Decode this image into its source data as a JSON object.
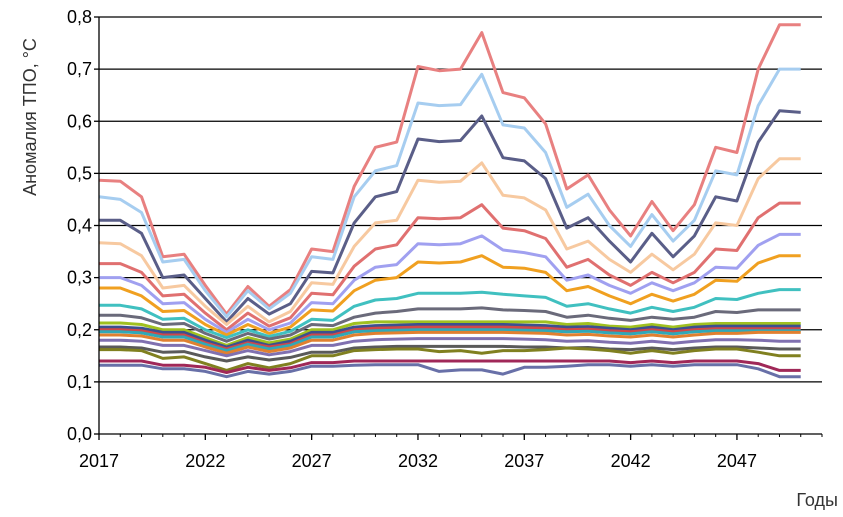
{
  "chart_data": {
    "type": "line",
    "ylabel": "Аномалия ТПО, °С",
    "xlabel": "Годы",
    "ylim": [
      0,
      0.8
    ],
    "xlim": [
      2017,
      2051
    ],
    "grid": "horizontal",
    "x_ticks": [
      "2017",
      "2022",
      "2027",
      "2032",
      "2037",
      "2042",
      "2047"
    ],
    "y_ticks": [
      "0,0",
      "0,1",
      "0,2",
      "0,3",
      "0,4",
      "0,5",
      "0,6",
      "0,7",
      "0,8"
    ],
    "x": [
      2017,
      2018,
      2019,
      2020,
      2021,
      2022,
      2023,
      2024,
      2025,
      2026,
      2027,
      2028,
      2029,
      2030,
      2031,
      2032,
      2033,
      2034,
      2035,
      2036,
      2037,
      2038,
      2039,
      2040,
      2041,
      2042,
      2043,
      2044,
      2045,
      2046,
      2047,
      2048,
      2049,
      2050
    ],
    "series": [
      {
        "color": "#e88080",
        "values": [
          0.487,
          0.485,
          0.455,
          0.34,
          0.345,
          0.285,
          0.23,
          0.283,
          0.245,
          0.277,
          0.355,
          0.35,
          0.475,
          0.55,
          0.56,
          0.705,
          0.697,
          0.7,
          0.77,
          0.655,
          0.645,
          0.595,
          0.47,
          0.497,
          0.43,
          0.38,
          0.446,
          0.39,
          0.44,
          0.55,
          0.54,
          0.7,
          0.785,
          0.785
        ]
      },
      {
        "color": "#a6cdf0",
        "values": [
          0.455,
          0.45,
          0.425,
          0.33,
          0.335,
          0.275,
          0.225,
          0.275,
          0.24,
          0.27,
          0.34,
          0.335,
          0.455,
          0.505,
          0.515,
          0.635,
          0.63,
          0.632,
          0.69,
          0.593,
          0.587,
          0.54,
          0.435,
          0.46,
          0.4,
          0.36,
          0.421,
          0.37,
          0.41,
          0.505,
          0.497,
          0.63,
          0.7,
          0.7
        ]
      },
      {
        "color": "#5a5e88",
        "values": [
          0.41,
          0.41,
          0.385,
          0.3,
          0.305,
          0.26,
          0.215,
          0.26,
          0.23,
          0.25,
          0.312,
          0.309,
          0.405,
          0.455,
          0.465,
          0.566,
          0.561,
          0.563,
          0.61,
          0.53,
          0.524,
          0.49,
          0.395,
          0.415,
          0.37,
          0.33,
          0.385,
          0.34,
          0.38,
          0.455,
          0.447,
          0.56,
          0.62,
          0.617
        ]
      },
      {
        "color": "#f7c9a0",
        "values": [
          0.367,
          0.365,
          0.342,
          0.28,
          0.285,
          0.245,
          0.21,
          0.245,
          0.215,
          0.235,
          0.29,
          0.287,
          0.36,
          0.405,
          0.41,
          0.487,
          0.483,
          0.485,
          0.52,
          0.458,
          0.453,
          0.43,
          0.355,
          0.37,
          0.335,
          0.31,
          0.345,
          0.315,
          0.345,
          0.405,
          0.4,
          0.49,
          0.528,
          0.528
        ]
      },
      {
        "color": "#e07070",
        "values": [
          0.327,
          0.327,
          0.31,
          0.265,
          0.268,
          0.232,
          0.2,
          0.232,
          0.207,
          0.223,
          0.27,
          0.267,
          0.322,
          0.355,
          0.363,
          0.415,
          0.413,
          0.415,
          0.44,
          0.395,
          0.39,
          0.375,
          0.32,
          0.335,
          0.305,
          0.285,
          0.31,
          0.29,
          0.31,
          0.355,
          0.352,
          0.415,
          0.443,
          0.443
        ]
      },
      {
        "color": "#a0a0f0",
        "values": [
          0.3,
          0.3,
          0.285,
          0.25,
          0.252,
          0.22,
          0.195,
          0.22,
          0.2,
          0.213,
          0.252,
          0.25,
          0.295,
          0.32,
          0.325,
          0.365,
          0.363,
          0.365,
          0.38,
          0.353,
          0.348,
          0.34,
          0.295,
          0.305,
          0.285,
          0.27,
          0.29,
          0.275,
          0.29,
          0.32,
          0.318,
          0.362,
          0.383,
          0.383
        ]
      },
      {
        "color": "#f0a020",
        "values": [
          0.28,
          0.28,
          0.265,
          0.235,
          0.237,
          0.21,
          0.19,
          0.21,
          0.193,
          0.205,
          0.238,
          0.236,
          0.275,
          0.295,
          0.3,
          0.33,
          0.328,
          0.33,
          0.342,
          0.32,
          0.318,
          0.31,
          0.275,
          0.283,
          0.265,
          0.25,
          0.268,
          0.255,
          0.268,
          0.295,
          0.293,
          0.328,
          0.342,
          0.342
        ]
      },
      {
        "color": "#40c0c0",
        "values": [
          0.247,
          0.247,
          0.24,
          0.22,
          0.222,
          0.2,
          0.185,
          0.2,
          0.187,
          0.197,
          0.22,
          0.218,
          0.245,
          0.257,
          0.26,
          0.27,
          0.27,
          0.27,
          0.272,
          0.268,
          0.265,
          0.262,
          0.245,
          0.25,
          0.24,
          0.232,
          0.243,
          0.235,
          0.243,
          0.26,
          0.258,
          0.27,
          0.277,
          0.277
        ]
      },
      {
        "color": "#6a6a7a",
        "values": [
          0.228,
          0.228,
          0.223,
          0.21,
          0.212,
          0.193,
          0.178,
          0.193,
          0.182,
          0.19,
          0.21,
          0.208,
          0.224,
          0.232,
          0.235,
          0.24,
          0.24,
          0.24,
          0.242,
          0.238,
          0.237,
          0.235,
          0.224,
          0.228,
          0.222,
          0.218,
          0.224,
          0.22,
          0.224,
          0.235,
          0.233,
          0.238,
          0.238,
          0.238
        ]
      },
      {
        "color": "#a0c020",
        "values": [
          0.213,
          0.213,
          0.21,
          0.2,
          0.2,
          0.185,
          0.17,
          0.185,
          0.175,
          0.182,
          0.2,
          0.2,
          0.212,
          0.215,
          0.215,
          0.215,
          0.215,
          0.215,
          0.215,
          0.215,
          0.215,
          0.215,
          0.21,
          0.212,
          0.207,
          0.205,
          0.21,
          0.205,
          0.21,
          0.212,
          0.212,
          0.212,
          0.212,
          0.212
        ]
      },
      {
        "color": "#3c5090",
        "values": [
          0.205,
          0.205,
          0.203,
          0.195,
          0.195,
          0.18,
          0.167,
          0.18,
          0.17,
          0.178,
          0.195,
          0.195,
          0.205,
          0.208,
          0.209,
          0.21,
          0.21,
          0.21,
          0.21,
          0.21,
          0.209,
          0.208,
          0.205,
          0.206,
          0.203,
          0.2,
          0.205,
          0.2,
          0.205,
          0.207,
          0.207,
          0.207,
          0.207,
          0.207
        ]
      },
      {
        "color": "#d04848",
        "values": [
          0.2,
          0.2,
          0.198,
          0.19,
          0.19,
          0.175,
          0.163,
          0.175,
          0.167,
          0.173,
          0.19,
          0.19,
          0.2,
          0.203,
          0.204,
          0.205,
          0.205,
          0.205,
          0.205,
          0.205,
          0.204,
          0.203,
          0.2,
          0.201,
          0.198,
          0.196,
          0.2,
          0.196,
          0.2,
          0.202,
          0.202,
          0.202,
          0.202,
          0.202
        ]
      },
      {
        "color": "#30a8b8",
        "values": [
          0.196,
          0.196,
          0.194,
          0.186,
          0.186,
          0.172,
          0.16,
          0.172,
          0.163,
          0.17,
          0.186,
          0.186,
          0.196,
          0.198,
          0.199,
          0.2,
          0.2,
          0.2,
          0.2,
          0.2,
          0.199,
          0.198,
          0.196,
          0.197,
          0.194,
          0.192,
          0.196,
          0.192,
          0.196,
          0.198,
          0.198,
          0.198,
          0.198,
          0.198
        ]
      },
      {
        "color": "#e08030",
        "values": [
          0.19,
          0.19,
          0.188,
          0.18,
          0.18,
          0.167,
          0.155,
          0.167,
          0.158,
          0.165,
          0.18,
          0.18,
          0.19,
          0.193,
          0.194,
          0.195,
          0.195,
          0.195,
          0.195,
          0.195,
          0.194,
          0.193,
          0.19,
          0.191,
          0.188,
          0.186,
          0.19,
          0.186,
          0.19,
          0.193,
          0.193,
          0.195,
          0.195,
          0.195
        ]
      },
      {
        "color": "#8070b0",
        "values": [
          0.18,
          0.18,
          0.178,
          0.17,
          0.17,
          0.16,
          0.15,
          0.16,
          0.152,
          0.158,
          0.17,
          0.17,
          0.178,
          0.181,
          0.182,
          0.183,
          0.183,
          0.183,
          0.183,
          0.183,
          0.182,
          0.181,
          0.178,
          0.179,
          0.176,
          0.174,
          0.178,
          0.174,
          0.178,
          0.181,
          0.181,
          0.18,
          0.178,
          0.178
        ]
      },
      {
        "color": "#5a5a5a",
        "values": [
          0.167,
          0.167,
          0.165,
          0.157,
          0.158,
          0.148,
          0.14,
          0.148,
          0.142,
          0.147,
          0.157,
          0.157,
          0.165,
          0.167,
          0.168,
          0.168,
          0.168,
          0.168,
          0.168,
          0.168,
          0.167,
          0.167,
          0.165,
          0.166,
          0.163,
          0.162,
          0.165,
          0.162,
          0.165,
          0.167,
          0.167,
          0.165,
          0.163,
          0.163
        ]
      },
      {
        "color": "#808020",
        "values": [
          0.162,
          0.162,
          0.16,
          0.145,
          0.148,
          0.135,
          0.122,
          0.135,
          0.127,
          0.135,
          0.15,
          0.15,
          0.16,
          0.162,
          0.163,
          0.163,
          0.158,
          0.16,
          0.155,
          0.16,
          0.16,
          0.162,
          0.165,
          0.163,
          0.16,
          0.155,
          0.16,
          0.155,
          0.16,
          0.163,
          0.163,
          0.157,
          0.15,
          0.15
        ]
      },
      {
        "color": "#a02858",
        "values": [
          0.14,
          0.14,
          0.14,
          0.132,
          0.132,
          0.128,
          0.118,
          0.128,
          0.122,
          0.127,
          0.137,
          0.137,
          0.14,
          0.14,
          0.14,
          0.14,
          0.14,
          0.14,
          0.14,
          0.14,
          0.14,
          0.14,
          0.14,
          0.14,
          0.14,
          0.137,
          0.14,
          0.137,
          0.14,
          0.14,
          0.14,
          0.135,
          0.122,
          0.122
        ]
      },
      {
        "color": "#6870a8",
        "values": [
          0.132,
          0.132,
          0.132,
          0.125,
          0.125,
          0.12,
          0.11,
          0.12,
          0.115,
          0.12,
          0.13,
          0.13,
          0.132,
          0.133,
          0.133,
          0.133,
          0.12,
          0.123,
          0.123,
          0.115,
          0.128,
          0.128,
          0.13,
          0.133,
          0.133,
          0.13,
          0.133,
          0.13,
          0.133,
          0.133,
          0.133,
          0.125,
          0.11,
          0.11
        ]
      }
    ]
  }
}
